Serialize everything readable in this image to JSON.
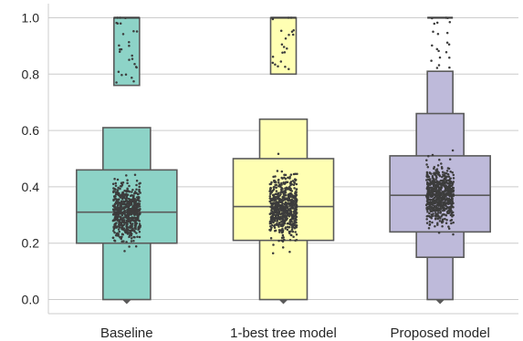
{
  "chart_data": {
    "type": "boxen",
    "title": "",
    "xlabel": "",
    "ylabel": "",
    "ylim": [
      -0.05,
      1.05
    ],
    "yticks": [
      "0.0",
      "0.2",
      "0.4",
      "0.6",
      "0.8",
      "1.0"
    ],
    "grid": "horizontal",
    "legend": "none",
    "categories": [
      "Baseline",
      "1-best tree model",
      "Proposed model"
    ],
    "series": [
      {
        "category": "Baseline",
        "color": "#8dd3c7",
        "median": 0.31,
        "levels": [
          [
            0.2,
            0.46
          ],
          [
            0.0,
            0.61
          ],
          [
            0.76,
            1.0
          ]
        ],
        "min": 0.0,
        "max": 1.0,
        "outliers": [
          0.78,
          0.8,
          0.83,
          0.86,
          0.88,
          0.91,
          0.95,
          0.98,
          1.0
        ]
      },
      {
        "category": "1-best tree model",
        "color": "#ffffb3",
        "median": 0.33,
        "levels": [
          [
            0.21,
            0.5
          ],
          [
            0.0,
            0.64
          ],
          [
            0.8,
            1.0
          ]
        ],
        "min": 0.0,
        "max": 1.0,
        "outliers": [
          0.82,
          0.84,
          0.87,
          0.9,
          0.93,
          0.96,
          1.0
        ]
      },
      {
        "category": "Proposed model",
        "color": "#bebada",
        "median": 0.37,
        "levels": [
          [
            0.24,
            0.51
          ],
          [
            0.15,
            0.66
          ],
          [
            0.0,
            0.81
          ]
        ],
        "min": 0.0,
        "max": 1.0,
        "outliers": [
          0.83,
          0.85,
          0.88,
          0.91,
          0.95,
          0.98,
          1.0
        ]
      }
    ],
    "colors": {
      "box_edge": "#5a5a5a",
      "grid": "#cccccc",
      "points": "#3c3c3c",
      "text": "#262626"
    }
  }
}
